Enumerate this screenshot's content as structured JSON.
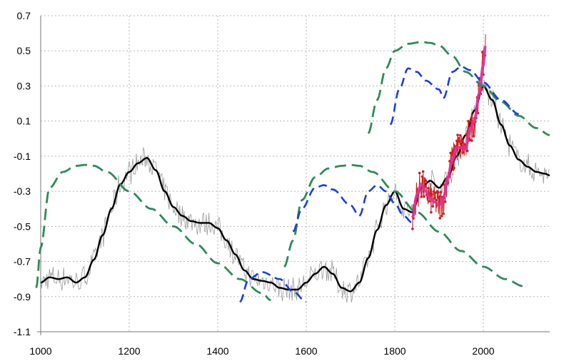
{
  "chart_data": {
    "type": "line",
    "title": "",
    "xlabel": "",
    "ylabel": "",
    "xlim": [
      1000,
      2150
    ],
    "ylim": [
      -1.1,
      0.7
    ],
    "xticks": [
      1000,
      1200,
      1400,
      1600,
      1800,
      2000
    ],
    "yticks": [
      0.7,
      0.5,
      0.3,
      0.1,
      -0.1,
      -0.3,
      -0.5,
      -0.7,
      -0.9,
      -1.1
    ],
    "ytick_labels": [
      "0.7",
      "0.5",
      "0.3",
      "0.1",
      "-0.1",
      "-0.3",
      "-0.5",
      "-0.7",
      "-0.9",
      "-1.1"
    ],
    "grid": true,
    "legend": "none",
    "series": [
      {
        "style": "noisy-grey",
        "color": "#8a8a8a",
        "x": [
          1000,
          1020,
          1040,
          1060,
          1080,
          1100,
          1120,
          1140,
          1160,
          1180,
          1200,
          1220,
          1240,
          1260,
          1280,
          1300,
          1320,
          1340,
          1360,
          1380,
          1400,
          1420,
          1440,
          1460,
          1480,
          1500,
          1520,
          1540,
          1560,
          1580,
          1600,
          1620,
          1640,
          1660,
          1680,
          1700,
          1720,
          1740,
          1760,
          1780,
          1800,
          1820,
          1840,
          1860,
          1880,
          1900,
          1920,
          1940,
          1960,
          1980,
          2000,
          2020,
          2040,
          2060,
          2080,
          2100,
          2120,
          2140,
          2150
        ],
        "y": [
          -0.82,
          -0.79,
          -0.8,
          -0.79,
          -0.82,
          -0.79,
          -0.69,
          -0.55,
          -0.4,
          -0.26,
          -0.19,
          -0.14,
          -0.11,
          -0.18,
          -0.3,
          -0.39,
          -0.44,
          -0.47,
          -0.48,
          -0.48,
          -0.51,
          -0.58,
          -0.66,
          -0.75,
          -0.8,
          -0.81,
          -0.82,
          -0.85,
          -0.86,
          -0.86,
          -0.82,
          -0.77,
          -0.73,
          -0.77,
          -0.85,
          -0.87,
          -0.82,
          -0.68,
          -0.52,
          -0.38,
          -0.3,
          -0.4,
          -0.42,
          -0.28,
          -0.24,
          -0.28,
          -0.22,
          -0.1,
          0.02,
          0.16,
          0.3,
          0.22,
          0.08,
          -0.04,
          -0.12,
          -0.16,
          -0.19,
          -0.2,
          -0.21
        ]
      },
      {
        "style": "smoothed-black",
        "color": "#000000",
        "x": [
          1000,
          1020,
          1040,
          1060,
          1080,
          1100,
          1120,
          1140,
          1160,
          1180,
          1200,
          1220,
          1240,
          1260,
          1280,
          1300,
          1320,
          1340,
          1360,
          1380,
          1400,
          1420,
          1440,
          1460,
          1480,
          1500,
          1520,
          1540,
          1560,
          1580,
          1600,
          1620,
          1640,
          1660,
          1680,
          1700,
          1720,
          1740,
          1760,
          1780,
          1800,
          1820,
          1840,
          1860,
          1880,
          1900,
          1920,
          1940,
          1960,
          1980,
          2000,
          2020,
          2040,
          2060,
          2080,
          2100,
          2120,
          2140,
          2150
        ],
        "y": [
          -0.82,
          -0.79,
          -0.8,
          -0.79,
          -0.82,
          -0.79,
          -0.69,
          -0.55,
          -0.4,
          -0.26,
          -0.19,
          -0.14,
          -0.11,
          -0.18,
          -0.3,
          -0.39,
          -0.44,
          -0.47,
          -0.48,
          -0.48,
          -0.51,
          -0.58,
          -0.66,
          -0.75,
          -0.8,
          -0.81,
          -0.82,
          -0.85,
          -0.86,
          -0.86,
          -0.82,
          -0.77,
          -0.73,
          -0.77,
          -0.85,
          -0.87,
          -0.82,
          -0.68,
          -0.52,
          -0.38,
          -0.3,
          -0.4,
          -0.42,
          -0.28,
          -0.24,
          -0.28,
          -0.22,
          -0.1,
          0.02,
          0.16,
          0.3,
          0.22,
          0.08,
          -0.04,
          -0.12,
          -0.16,
          -0.19,
          -0.2,
          -0.21
        ]
      },
      {
        "style": "magenta-red-markers",
        "color": "#e0309a",
        "marker_color": "#cc2222",
        "x": [
          1840,
          1850,
          1860,
          1870,
          1880,
          1890,
          1900,
          1910,
          1920,
          1930,
          1940,
          1950,
          1960,
          1970,
          1980,
          1990,
          2000,
          2005
        ],
        "y": [
          -0.45,
          -0.32,
          -0.26,
          -0.3,
          -0.34,
          -0.36,
          -0.38,
          -0.34,
          -0.22,
          -0.12,
          -0.05,
          -0.05,
          -0.06,
          0.06,
          0.1,
          0.25,
          0.42,
          0.54
        ]
      },
      {
        "style": "dashed-green",
        "color": "#2e8b57",
        "segments": [
          {
            "x": [
              990,
              1000,
              1020,
              1050,
              1080,
              1100,
              1120,
              1150,
              1200,
              1250,
              1300,
              1350,
              1400,
              1450,
              1500,
              1520
            ],
            "y": [
              -0.85,
              -0.62,
              -0.28,
              -0.19,
              -0.155,
              -0.15,
              -0.155,
              -0.19,
              -0.3,
              -0.4,
              -0.5,
              -0.6,
              -0.71,
              -0.8,
              -0.88,
              -0.92
            ]
          },
          {
            "x": [
              1550,
              1570,
              1590,
              1620,
              1650,
              1680,
              1700,
              1720,
              1750,
              1800,
              1850,
              1900,
              1950,
              2000,
              2050,
              2090
            ],
            "y": [
              -0.73,
              -0.58,
              -0.35,
              -0.22,
              -0.17,
              -0.155,
              -0.15,
              -0.155,
              -0.19,
              -0.3,
              -0.42,
              -0.53,
              -0.64,
              -0.73,
              -0.8,
              -0.84
            ]
          },
          {
            "x": [
              1740,
              1760,
              1780,
              1800,
              1830,
              1860,
              1880,
              1900,
              1930,
              1960,
              2000,
              2040,
              2080,
              2120,
              2150
            ],
            "y": [
              0.03,
              0.22,
              0.4,
              0.5,
              0.54,
              0.55,
              0.545,
              0.53,
              0.47,
              0.38,
              0.3,
              0.21,
              0.13,
              0.06,
              0.02
            ]
          }
        ]
      },
      {
        "style": "dashed-blue",
        "color": "#1a3fdc",
        "segments": [
          {
            "x": [
              1450,
              1470,
              1500,
              1540,
              1570,
              1600
            ],
            "y": [
              -0.93,
              -0.8,
              -0.76,
              -0.8,
              -0.87,
              -0.93
            ]
          },
          {
            "x": [
              1570,
              1590,
              1620,
              1640,
              1660,
              1700,
              1720
            ],
            "y": [
              -0.53,
              -0.4,
              -0.28,
              -0.265,
              -0.29,
              -0.38,
              -0.44
            ]
          },
          {
            "x": [
              1720,
              1740,
              1760,
              1780,
              1800,
              1820,
              1840
            ],
            "y": [
              -0.44,
              -0.3,
              -0.265,
              -0.3,
              -0.37,
              -0.44,
              -0.48
            ]
          },
          {
            "x": [
              1790,
              1810,
              1830,
              1850,
              1870,
              1900,
              1910
            ],
            "y": [
              0.08,
              0.28,
              0.4,
              0.38,
              0.33,
              0.28,
              0.23
            ]
          },
          {
            "x": [
              1910,
              1930,
              1950,
              1970,
              2000,
              2040,
              2080
            ],
            "y": [
              0.23,
              0.38,
              0.41,
              0.39,
              0.32,
              0.22,
              0.14
            ]
          }
        ]
      }
    ]
  }
}
